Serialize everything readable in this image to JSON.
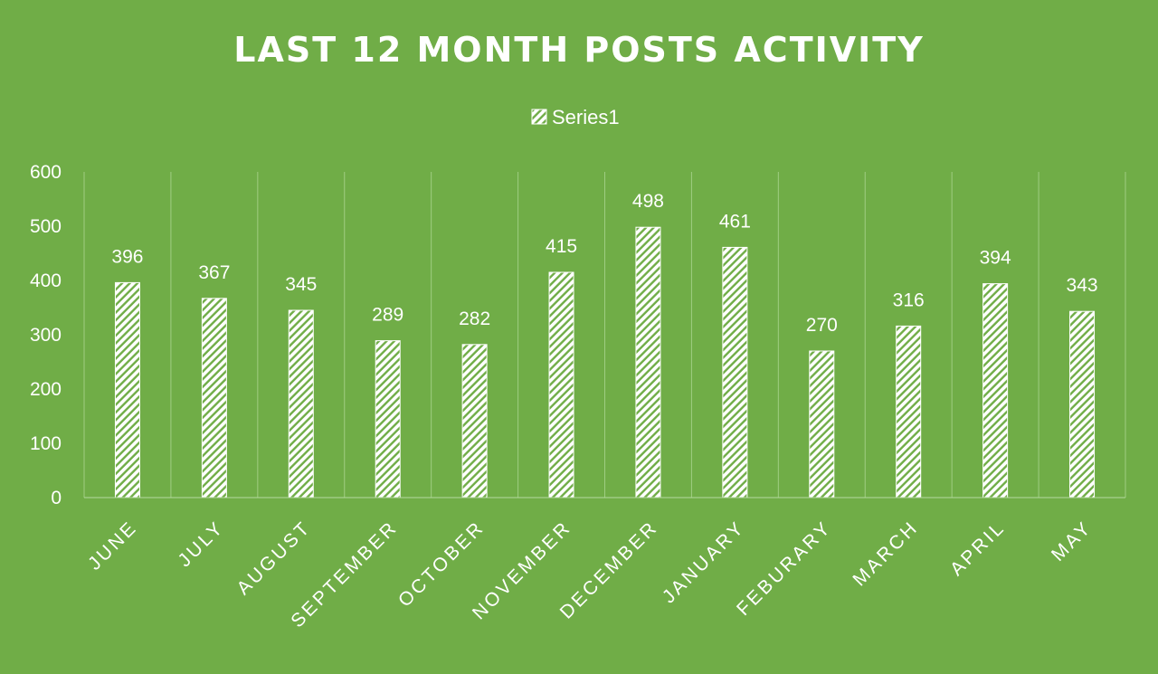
{
  "chart_data": {
    "type": "bar",
    "title": "LAST 12 MONTH POSTS ACTIVITY",
    "legend": {
      "entries": [
        "Series1"
      ],
      "position": "top"
    },
    "categories": [
      "JUNE",
      "JULY",
      "AUGUST",
      "SEPTEMBER",
      "OCTOBER",
      "NOVEMBER",
      "DECEMBER",
      "JANUARY",
      "FEBURARY",
      "MARCH",
      "APRIL",
      "MAY"
    ],
    "series": [
      {
        "name": "Series1",
        "values": [
          396,
          367,
          345,
          289,
          282,
          415,
          498,
          461,
          270,
          316,
          394,
          343
        ]
      }
    ],
    "y_ticks": [
      "0",
      "100",
      "200",
      "300",
      "400",
      "500",
      "600"
    ],
    "ylim": [
      0,
      600
    ],
    "xlabel": "",
    "ylabel": "",
    "grid": {
      "vertical_category_lines": true,
      "horizontal": false
    },
    "data_labels": true,
    "bar_pattern": "white diagonal hatch",
    "colors": {
      "background": "#70ad47",
      "bar": "#ffffff",
      "text": "#ffffff",
      "grid": "#9fcd82"
    }
  }
}
